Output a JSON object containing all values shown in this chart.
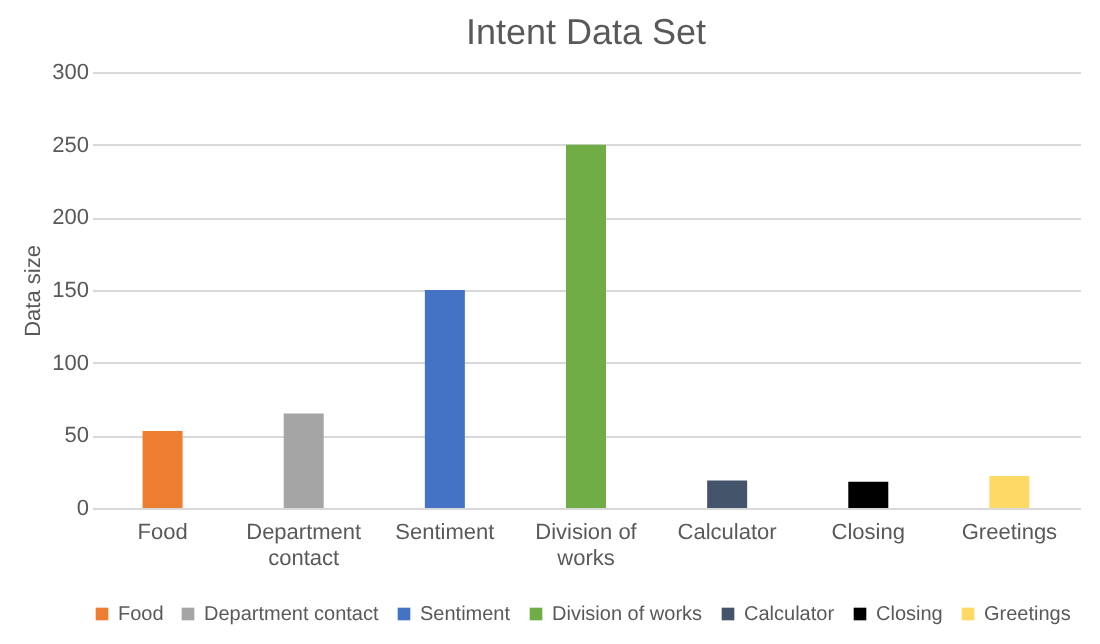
{
  "chart_data": {
    "type": "bar",
    "title": "Intent Data Set",
    "ylabel": "Data size",
    "categories": [
      "Food",
      "Department contact",
      "Sentiment",
      "Division of works",
      "Calculator",
      "Closing",
      "Greetings"
    ],
    "series": [
      {
        "name": "Food",
        "color": "#ed7d31",
        "values": [
          53,
          null,
          null,
          null,
          null,
          null,
          null
        ]
      },
      {
        "name": "Department contact",
        "color": "#a5a5a5",
        "values": [
          null,
          65,
          null,
          null,
          null,
          null,
          null
        ]
      },
      {
        "name": "Sentiment",
        "color": "#4472c4",
        "values": [
          null,
          null,
          150,
          null,
          null,
          null,
          null
        ]
      },
      {
        "name": "Division of works",
        "color": "#70ad47",
        "values": [
          null,
          null,
          null,
          250,
          null,
          null,
          null
        ]
      },
      {
        "name": "Calculator",
        "color": "#44546a",
        "values": [
          null,
          null,
          null,
          null,
          19,
          null,
          null
        ]
      },
      {
        "name": "Closing",
        "color": "#000000",
        "values": [
          null,
          null,
          null,
          null,
          null,
          18,
          null
        ]
      },
      {
        "name": "Greetings",
        "color": "#ffd966",
        "values": [
          null,
          null,
          null,
          null,
          null,
          null,
          22
        ]
      }
    ],
    "ylim": [
      0,
      300
    ],
    "yticks": [
      0,
      50,
      100,
      150,
      200,
      250,
      300
    ],
    "grid": "y",
    "legend": "bottom"
  }
}
